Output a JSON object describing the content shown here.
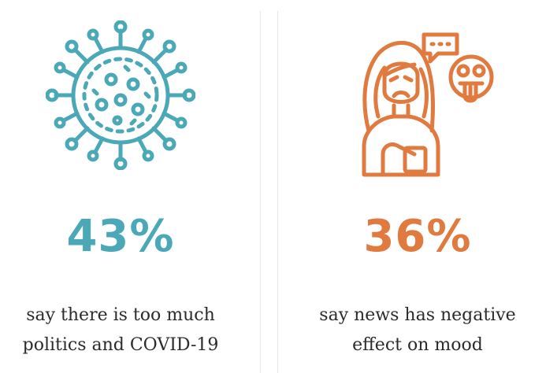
{
  "stats": [
    {
      "icon": "virus-icon",
      "percent": "43%",
      "caption": "say there is too much\npolitics and COVID-19",
      "color": "#4aa8b7"
    },
    {
      "icon": "sad-woman-speech-bubble-icon",
      "percent": "36%",
      "caption": "say news has negative\neffect on mood",
      "color": "#e07a3f"
    }
  ]
}
